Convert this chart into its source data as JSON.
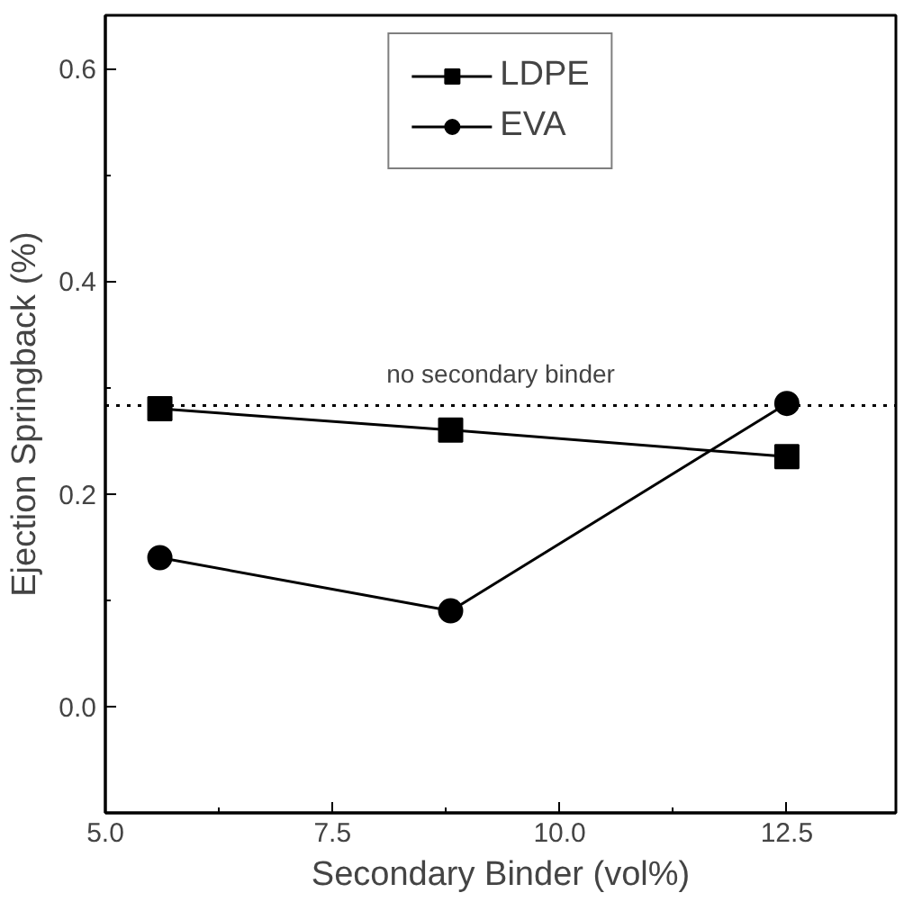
{
  "chart_data": {
    "type": "line",
    "xlabel": "Secondary Binder (vol%)",
    "ylabel": "Ejection Springback (%)",
    "x": [
      5.6,
      8.8,
      12.5
    ],
    "series": [
      {
        "name": "LDPE",
        "color": "#000000",
        "values": [
          0.28,
          0.26,
          0.235
        ],
        "marker": "square"
      },
      {
        "name": "EVA",
        "color": "#000000",
        "values": [
          0.14,
          0.09,
          0.285
        ],
        "marker": "circle"
      }
    ],
    "xlim": [
      5.0,
      13.7
    ],
    "xticks": [
      {
        "value": 5.0,
        "label": "5.0"
      },
      7.5,
      {
        "value": 10.0,
        "label": "10.0"
      },
      12.5
    ],
    "ylim": [
      -0.1,
      0.65
    ],
    "yticks": [
      {
        "value": 0.0,
        "label": "0.0"
      },
      0.2,
      0.4,
      0.6
    ],
    "ref_lines": [
      {
        "axis": "y",
        "value": 0.283,
        "label": "no secondary binder",
        "color": "#000000",
        "line_style": "dotted"
      }
    ],
    "grid": false,
    "legend": "top",
    "line_style": "solid"
  }
}
